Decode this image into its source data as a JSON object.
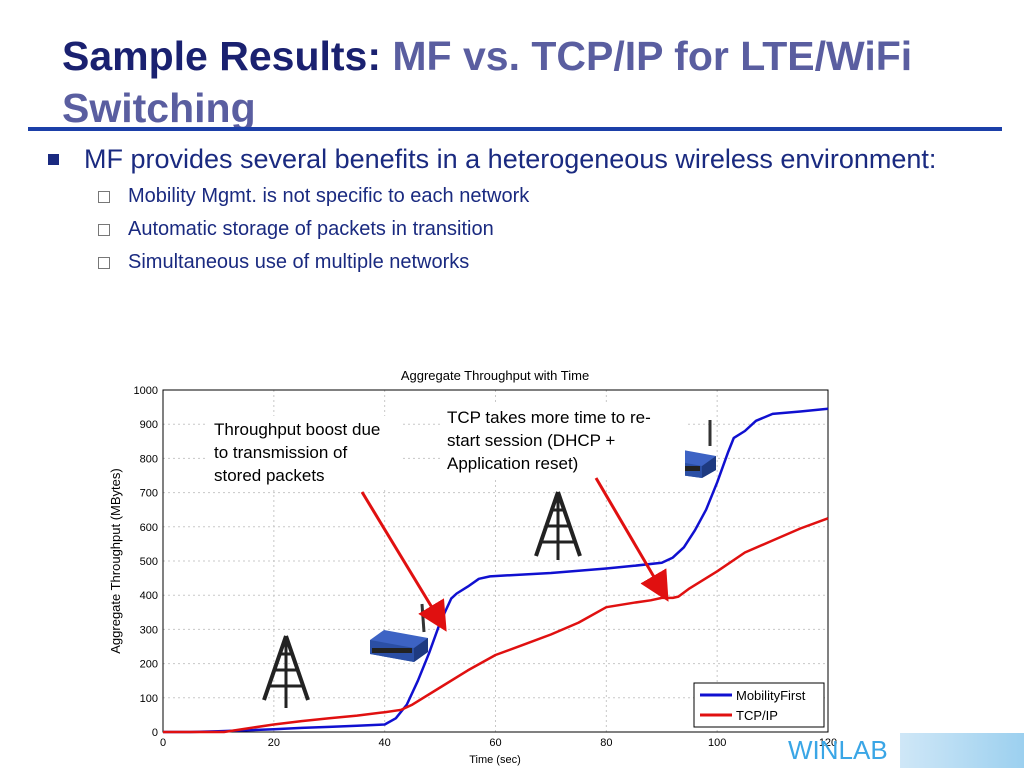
{
  "slide": {
    "title_part1": "Sample Results:",
    "title_part2": "MF vs. TCP/IP for LTE/WiFi Switching",
    "bullet": "MF provides several benefits in a heterogeneous wireless environment:",
    "sub_bullets": [
      "Mobility Mgmt. is not specific to each network",
      "Automatic storage of packets in transition",
      "Simultaneous use of multiple networks"
    ],
    "logo_text": "WINLAB"
  },
  "colors": {
    "title_dark": "#1a2170",
    "title_light": "#5a5ea0",
    "rule": "#1b3fa8",
    "mobilityfirst": "#1010d0",
    "tcpip": "#e01010",
    "logo": "#3aa6e6"
  },
  "annotations": [
    {
      "text": "Throughput boost due to transmission of stored packets"
    },
    {
      "text": "TCP takes more time to re-start session (DHCP + Application reset)"
    }
  ],
  "icons": [
    "cell-tower-icon",
    "wifi-router-icon",
    "cell-tower-icon",
    "wifi-router-icon"
  ],
  "chart_data": {
    "type": "line",
    "title": "Aggregate Throughput with Time",
    "xlabel": "Time (sec)",
    "ylabel": "Aggregate Throughput (MBytes)",
    "xlim": [
      0,
      120
    ],
    "ylim": [
      0,
      1000
    ],
    "xticks": [
      0,
      20,
      40,
      60,
      80,
      100,
      120
    ],
    "yticks": [
      0,
      100,
      200,
      300,
      400,
      500,
      600,
      700,
      800,
      900,
      1000
    ],
    "grid": true,
    "legend": "bottom-right",
    "series": [
      {
        "name": "MobilityFirst",
        "color": "#1010d0",
        "x": [
          0,
          5,
          10,
          15,
          20,
          25,
          30,
          35,
          40,
          42,
          44,
          46,
          48,
          50,
          52,
          53,
          55,
          57,
          59,
          62,
          70,
          80,
          85,
          90,
          92,
          94,
          96,
          98,
          100,
          102,
          103,
          105,
          107,
          110,
          115,
          120
        ],
        "y": [
          0,
          0,
          2,
          5,
          8,
          12,
          15,
          18,
          22,
          40,
          80,
          150,
          230,
          320,
          390,
          405,
          425,
          448,
          455,
          458,
          465,
          478,
          486,
          495,
          510,
          540,
          590,
          650,
          730,
          820,
          860,
          880,
          910,
          930,
          937,
          945
        ]
      },
      {
        "name": "TCP/IP",
        "color": "#e01010",
        "x": [
          0,
          11,
          15,
          20,
          25,
          30,
          35,
          40,
          43,
          45,
          50,
          55,
          60,
          65,
          70,
          75,
          80,
          85,
          88,
          90,
          92,
          93,
          95,
          100,
          105,
          110,
          115,
          120
        ],
        "y": [
          0,
          0,
          10,
          22,
          32,
          40,
          48,
          58,
          65,
          80,
          130,
          180,
          225,
          255,
          285,
          320,
          365,
          378,
          385,
          392,
          392,
          396,
          420,
          470,
          525,
          560,
          595,
          625
        ]
      }
    ]
  }
}
